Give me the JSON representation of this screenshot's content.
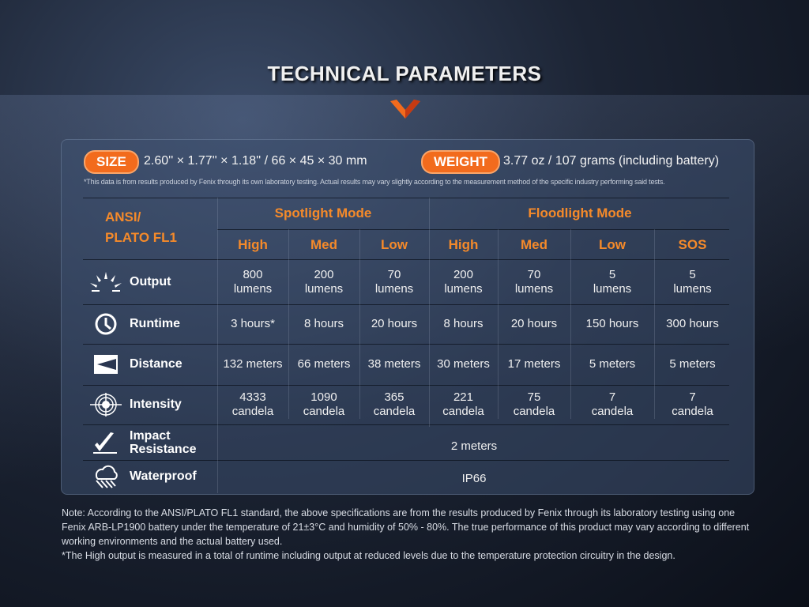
{
  "title": "TECHNICAL PARAMETERS",
  "size": {
    "label": "SIZE",
    "value": "2.60'' × 1.77'' × 1.18'' / 66 × 45 × 30 mm"
  },
  "weight": {
    "label": "WEIGHT",
    "value": "3.77 oz / 107 grams (including battery)"
  },
  "disclaimer": "*This data is from results produced by Fenix through its own laboratory testing. Actual results may vary slightly according to the measurement method of the specific industry performing said tests.",
  "table": {
    "standard_line1": "ANSI/",
    "standard_line2": "PLATO FL1",
    "groups": [
      "Spotlight Mode",
      "Floodlight Mode"
    ],
    "modes": [
      "High",
      "Med",
      "Low",
      "High",
      "Med",
      "Low",
      "SOS"
    ],
    "rows": [
      {
        "label": "Output",
        "icon": "sun-burst-icon",
        "values": [
          "800\nlumens",
          "200\nlumens",
          "70\nlumens",
          "200\nlumens",
          "70\nlumens",
          "5\nlumens",
          "5\nlumens"
        ]
      },
      {
        "label": "Runtime",
        "icon": "clock-icon",
        "values": [
          "3 hours*",
          "8 hours",
          "20 hours",
          "8 hours",
          "20 hours",
          "150 hours",
          "300 hours"
        ]
      },
      {
        "label": "Distance",
        "icon": "distance-icon",
        "values": [
          "132 meters",
          "66 meters",
          "38 meters",
          "30 meters",
          "17 meters",
          "5 meters",
          "5 meters"
        ]
      },
      {
        "label": "Intensity",
        "icon": "target-icon",
        "values": [
          "4333\ncandela",
          "1090\ncandela",
          "365\ncandela",
          "221\ncandela",
          "75\ncandela",
          "7\ncandela",
          "7\ncandela"
        ]
      }
    ],
    "impact": {
      "label_line1": "Impact",
      "label_line2": "Resistance",
      "icon": "impact-icon",
      "value": "2 meters"
    },
    "waterproof": {
      "label": "Waterproof",
      "icon": "rain-cloud-icon",
      "value": "IP66"
    }
  },
  "footnote": "Note: According to the ANSI/PLATO FL1 standard, the above specifications are from the results produced by Fenix through its laboratory testing using one Fenix ARB-LP1900 battery under the temperature of 21±3°C and humidity of 50% - 80%. The true performance of this product may vary according to different working environments and the actual battery used.",
  "footnote2": "*The High output is measured in a total of runtime including output at reduced levels due to the temperature protection circuitry in the design.",
  "colors": {
    "accent": "#f26b1d",
    "header_text": "#f58a2a"
  }
}
